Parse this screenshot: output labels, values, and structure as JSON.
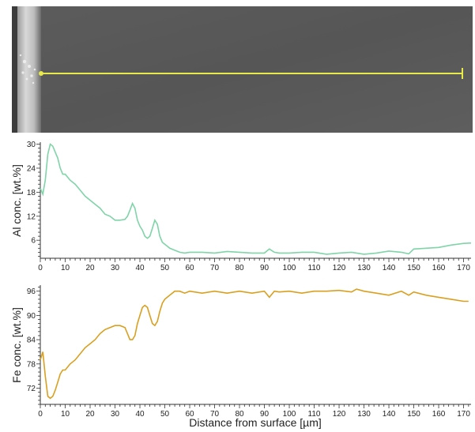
{
  "sem_image": {
    "line_color": "#e8ea4a",
    "background_color": "#5a5a5a"
  },
  "chart_data": [
    {
      "type": "line",
      "title": "",
      "ylabel": "Al conc. [wt.%]",
      "xlabel": "",
      "xlim": [
        0,
        173
      ],
      "ylim": [
        1.5,
        30.5
      ],
      "xticks": [
        0,
        10,
        20,
        30,
        40,
        50,
        60,
        70,
        80,
        90,
        100,
        110,
        120,
        130,
        140,
        150,
        160,
        170
      ],
      "yticks": [
        6,
        12,
        18,
        24,
        30
      ],
      "color": "#7fd4a8",
      "series": [
        {
          "x": [
            0,
            1,
            2,
            3,
            4,
            5,
            6,
            7,
            8,
            9,
            10,
            12,
            14,
            16,
            18,
            20,
            22,
            24,
            26,
            28,
            30,
            32,
            34,
            35,
            36,
            37,
            38,
            39,
            40,
            41,
            42,
            43,
            44,
            45,
            46,
            47,
            48,
            49,
            50,
            52,
            54,
            56,
            58,
            60,
            65,
            70,
            75,
            80,
            85,
            90,
            92,
            94,
            96,
            100,
            105,
            110,
            115,
            120,
            125,
            130,
            135,
            140,
            145,
            148,
            150,
            155,
            160,
            165,
            170,
            173
          ],
          "y": [
            19.0,
            17.5,
            21.0,
            27.5,
            30.0,
            29.5,
            28.0,
            26.5,
            24.0,
            22.5,
            22.5,
            21.0,
            20.0,
            18.5,
            17.0,
            16.0,
            15.0,
            14.0,
            12.5,
            12.0,
            11.0,
            11.0,
            11.2,
            12.0,
            13.5,
            15.2,
            14.0,
            11.0,
            9.5,
            8.5,
            7.0,
            6.5,
            7.0,
            9.0,
            11.0,
            10.0,
            7.0,
            5.5,
            5.0,
            4.0,
            3.5,
            3.0,
            2.8,
            3.0,
            3.0,
            2.8,
            3.2,
            3.0,
            2.8,
            2.8,
            3.8,
            3.0,
            2.8,
            2.8,
            3.0,
            3.0,
            2.5,
            2.8,
            3.0,
            2.5,
            2.8,
            3.3,
            3.0,
            2.6,
            3.8,
            4.0,
            4.2,
            4.8,
            5.2,
            5.3
          ]
        }
      ]
    },
    {
      "type": "line",
      "title": "",
      "ylabel": "Fe conc. [wt.%]",
      "xlabel": "Distance from surface [µm]",
      "xlim": [
        0,
        173
      ],
      "ylim": [
        68,
        97.5
      ],
      "xticks": [
        0,
        10,
        20,
        30,
        40,
        50,
        60,
        70,
        80,
        90,
        100,
        110,
        120,
        130,
        140,
        150,
        160,
        170
      ],
      "yticks": [
        72,
        78,
        84,
        90,
        96
      ],
      "color": "#d9a020",
      "series": [
        {
          "x": [
            0,
            1,
            2,
            3,
            4,
            5,
            6,
            7,
            8,
            9,
            10,
            12,
            14,
            16,
            18,
            20,
            22,
            24,
            26,
            28,
            30,
            32,
            34,
            35,
            36,
            37,
            38,
            39,
            40,
            41,
            42,
            43,
            44,
            45,
            46,
            47,
            48,
            49,
            50,
            52,
            54,
            56,
            58,
            60,
            65,
            70,
            75,
            80,
            85,
            90,
            92,
            94,
            96,
            100,
            105,
            110,
            115,
            120,
            125,
            127,
            130,
            135,
            140,
            145,
            148,
            150,
            155,
            160,
            165,
            170,
            172
          ],
          "y": [
            79.0,
            81.0,
            75.0,
            70.0,
            69.5,
            70.0,
            71.5,
            73.5,
            75.5,
            76.5,
            76.5,
            78.0,
            79.0,
            80.5,
            82.0,
            83.0,
            84.0,
            85.5,
            86.5,
            87.0,
            87.5,
            87.5,
            87.0,
            85.5,
            84.0,
            84.0,
            85.0,
            88.0,
            90.0,
            92.0,
            92.5,
            92.0,
            90.0,
            88.0,
            87.5,
            88.5,
            91.0,
            93.0,
            94.0,
            95.0,
            96.0,
            96.0,
            95.5,
            96.0,
            95.5,
            96.0,
            95.5,
            96.0,
            95.5,
            96.0,
            94.5,
            96.0,
            95.8,
            96.0,
            95.5,
            96.0,
            96.0,
            96.2,
            95.8,
            96.5,
            96.0,
            95.5,
            95.0,
            96.0,
            95.0,
            95.8,
            95.0,
            94.5,
            94.0,
            93.5,
            93.5
          ]
        }
      ]
    }
  ]
}
